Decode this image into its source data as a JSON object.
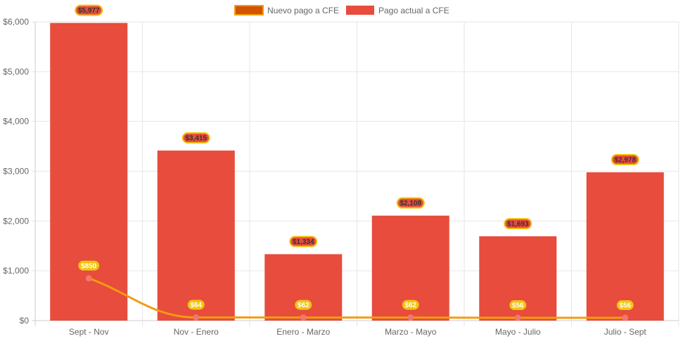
{
  "chart_data": {
    "type": "bar",
    "title": "",
    "xlabel": "",
    "ylabel": "",
    "ylim": [
      0,
      6000
    ],
    "yticks": [
      "$0",
      "$1,000",
      "$2,000",
      "$3,000",
      "$4,000",
      "$5,000",
      "$6,000"
    ],
    "ytick_values": [
      0,
      1000,
      2000,
      3000,
      4000,
      5000,
      6000
    ],
    "grid": true,
    "legend_position": "top-center",
    "categories": [
      "Sept - Nov",
      "Nov - Enero",
      "Enero - Marzo",
      "Marzo - Mayo",
      "Mayo - Julio",
      "Julio - Sept"
    ],
    "series": [
      {
        "name": "Nuevo pago a CFE",
        "type": "line",
        "values": [
          850,
          64,
          62,
          62,
          56,
          56
        ],
        "labels": [
          "$850",
          "$64",
          "$62",
          "$62",
          "$56",
          "$56"
        ],
        "color": "#f39c12",
        "legend_fill": "#d35400",
        "point_color": "#f1786b",
        "label_bg": "#f1c40f",
        "label_text": "#ffffff"
      },
      {
        "name": "Pago actual a CFE",
        "type": "bar",
        "values": [
          5977,
          3415,
          1334,
          2108,
          1693,
          2978
        ],
        "labels": [
          "$5,977",
          "$3,415",
          "$1,334",
          "$2,108",
          "$1,693",
          "$2,978"
        ],
        "color": "#e74c3c",
        "label_bg": "#e74c3c",
        "label_border": "#f1c40f",
        "label_text": "#333333"
      }
    ]
  }
}
